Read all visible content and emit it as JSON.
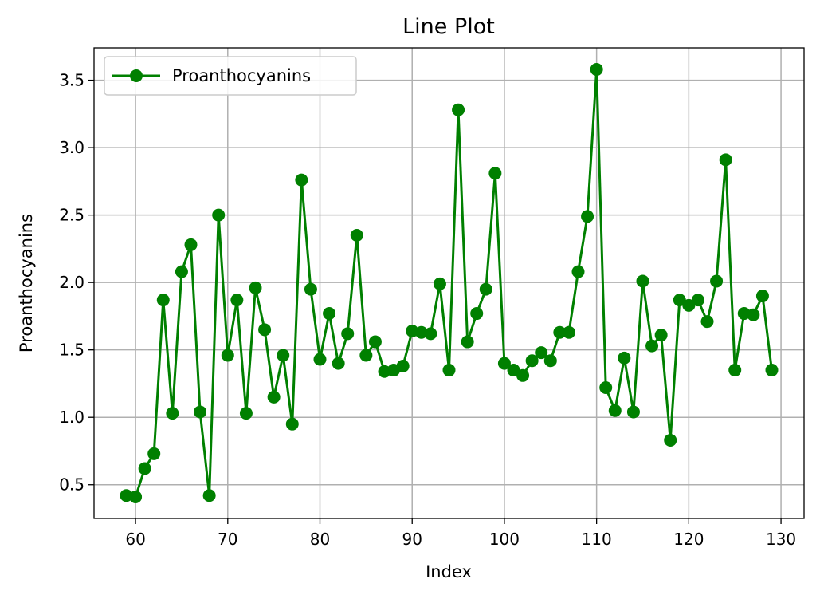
{
  "chart_data": {
    "type": "line",
    "title": "Line Plot",
    "xlabel": "Index",
    "ylabel": "Proanthocyanins",
    "xlim": [
      55.5,
      132.5
    ],
    "ylim": [
      0.25,
      3.74
    ],
    "xticks": [
      60,
      70,
      80,
      90,
      100,
      110,
      120,
      130
    ],
    "yticks": [
      0.5,
      1.0,
      1.5,
      2.0,
      2.5,
      3.0,
      3.5
    ],
    "grid": true,
    "legend_position": "upper-left",
    "color": "#008000",
    "series": [
      {
        "name": "Proanthocyanins",
        "x": [
          59,
          60,
          61,
          62,
          63,
          64,
          65,
          66,
          67,
          68,
          69,
          70,
          71,
          72,
          73,
          74,
          75,
          76,
          77,
          78,
          79,
          80,
          81,
          82,
          83,
          84,
          85,
          86,
          87,
          88,
          89,
          90,
          91,
          92,
          93,
          94,
          95,
          96,
          97,
          98,
          99,
          100,
          101,
          102,
          103,
          104,
          105,
          106,
          107,
          108,
          109,
          110,
          111,
          112,
          113,
          114,
          115,
          116,
          117,
          118,
          119,
          120,
          121,
          122,
          123,
          124,
          125,
          126,
          127,
          128,
          129
        ],
        "y": [
          0.42,
          0.41,
          0.62,
          0.73,
          1.87,
          1.03,
          2.08,
          2.28,
          1.04,
          0.42,
          2.5,
          1.46,
          1.87,
          1.03,
          1.96,
          1.65,
          1.15,
          1.46,
          0.95,
          2.76,
          1.95,
          1.43,
          1.77,
          1.4,
          1.62,
          2.35,
          1.46,
          1.56,
          1.34,
          1.35,
          1.38,
          1.64,
          1.63,
          1.62,
          1.99,
          1.35,
          3.28,
          1.56,
          1.77,
          1.95,
          2.81,
          1.4,
          1.35,
          1.31,
          1.42,
          1.48,
          1.42,
          1.63,
          1.63,
          2.08,
          2.49,
          3.58,
          1.22,
          1.05,
          1.44,
          1.04,
          2.01,
          1.53,
          1.61,
          0.83,
          1.87,
          1.83,
          1.87,
          1.71,
          2.01,
          2.91,
          1.35,
          1.77,
          1.76,
          1.9,
          1.35
        ]
      }
    ]
  }
}
